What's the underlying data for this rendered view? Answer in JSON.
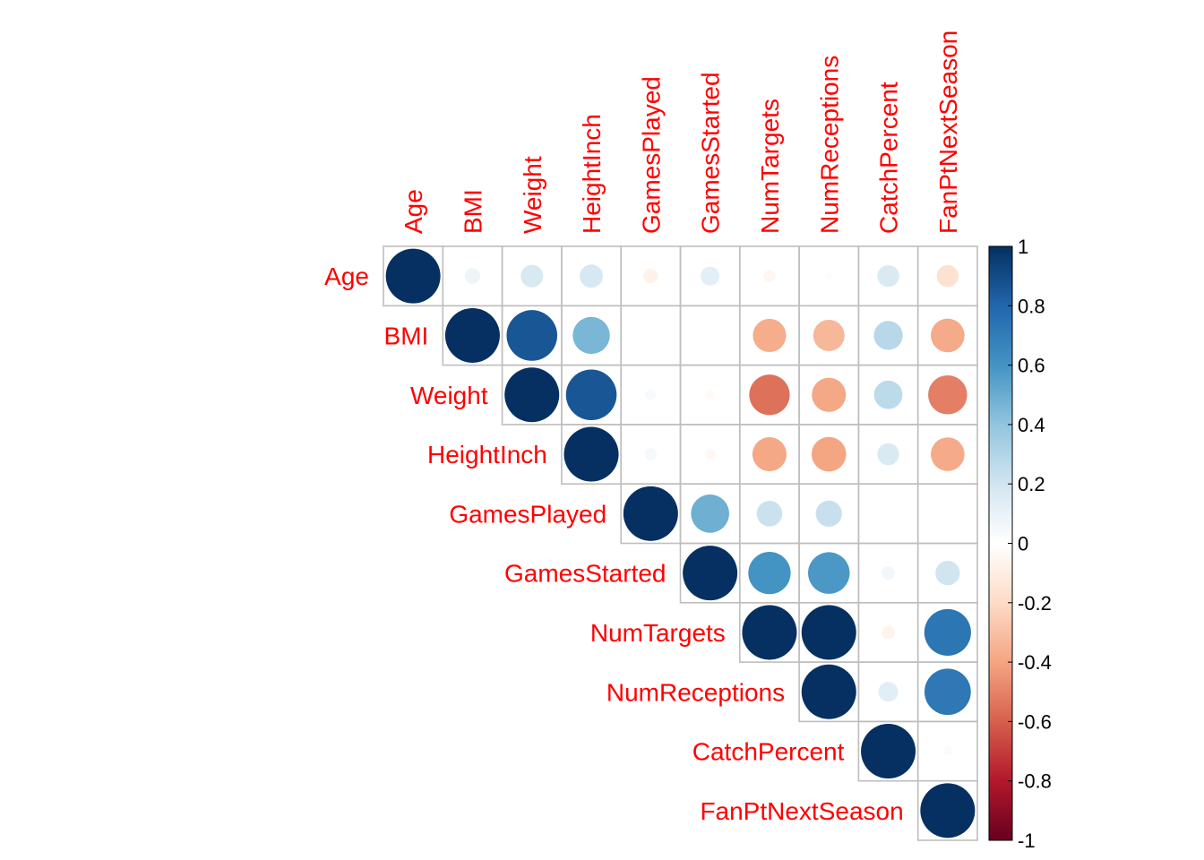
{
  "chart_data": {
    "type": "heatmap",
    "style": "corrplot-circle-upper",
    "variables": [
      "Age",
      "BMI",
      "Weight",
      "HeightInch",
      "GamesPlayed",
      "GamesStarted",
      "NumTargets",
      "NumReceptions",
      "CatchPercent",
      "FanPtNextSeason"
    ],
    "matrix": [
      [
        1.0,
        0.08,
        0.17,
        0.18,
        -0.07,
        0.12,
        -0.05,
        -0.02,
        0.16,
        -0.16
      ],
      [
        0.08,
        1.0,
        0.86,
        0.46,
        0.0,
        0.0,
        -0.37,
        -0.33,
        0.28,
        -0.38
      ],
      [
        0.17,
        0.86,
        1.0,
        0.86,
        0.04,
        -0.03,
        -0.55,
        -0.39,
        0.27,
        -0.51
      ],
      [
        0.18,
        0.46,
        0.86,
        1.0,
        0.05,
        -0.04,
        -0.39,
        -0.4,
        0.16,
        -0.38
      ],
      [
        -0.07,
        0.0,
        0.04,
        0.05,
        1.0,
        0.49,
        0.22,
        0.23,
        0.01,
        0.0
      ],
      [
        0.12,
        0.0,
        -0.03,
        -0.04,
        0.49,
        1.0,
        0.6,
        0.58,
        0.06,
        0.2
      ],
      [
        -0.05,
        -0.37,
        -0.55,
        -0.39,
        0.22,
        0.6,
        1.0,
        1.0,
        -0.06,
        0.73
      ],
      [
        -0.02,
        -0.33,
        -0.39,
        -0.4,
        0.23,
        0.58,
        1.0,
        1.0,
        0.13,
        0.72
      ],
      [
        0.16,
        0.28,
        0.27,
        0.16,
        0.01,
        0.06,
        -0.06,
        0.13,
        1.0,
        -0.03
      ],
      [
        -0.16,
        -0.38,
        -0.51,
        -0.38,
        0.0,
        0.2,
        0.73,
        0.72,
        -0.03,
        1.0
      ]
    ],
    "colorbar": {
      "range": [
        -1,
        1
      ],
      "ticks": [
        "1",
        "0.8",
        "0.6",
        "0.4",
        "0.2",
        "0",
        "-0.2",
        "-0.4",
        "-0.6",
        "-0.8",
        "-1"
      ]
    },
    "palette": {
      "negative_end": "#67001f",
      "negative_mid": "#d6604d",
      "neutral": "#ffffff",
      "positive_mid": "#4393c3",
      "positive_end": "#053061",
      "label_color": "#ff0000",
      "grid_color": "#bebebe"
    }
  }
}
